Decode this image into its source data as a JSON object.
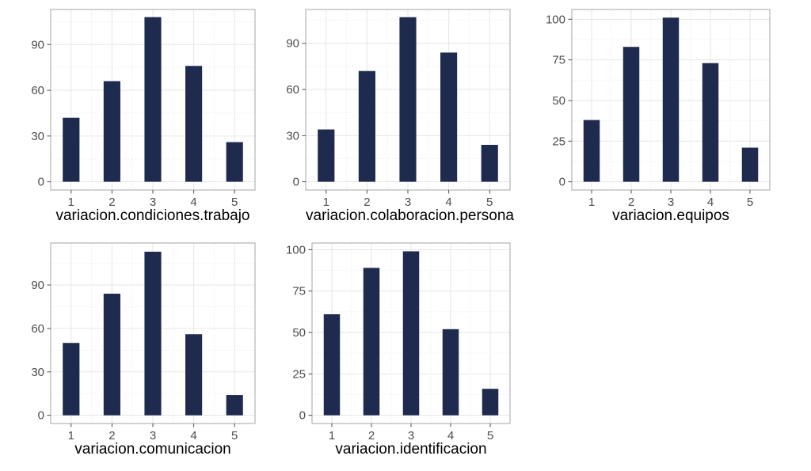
{
  "figure": {
    "description": "Grid of five histograms showing distributions of 1-5 survey responses",
    "background": "#ffffff"
  },
  "styles": {
    "bar_color": "#1f2b4e",
    "panel_bg": "#ffffff",
    "panel_border": "#b3b3b3",
    "grid_major": "#e6e6e6",
    "grid_minor": "#ededed",
    "tick_mark": "#4d4d4d",
    "tick_label_color": "#4d4d4d",
    "axis_title_color": "#000000"
  },
  "chart_data": [
    {
      "type": "bar",
      "title": "",
      "xlabel": "variacion.condiciones.trabajo",
      "ylabel": "",
      "categories": [
        1,
        2,
        3,
        4,
        5
      ],
      "values": [
        42,
        66,
        108,
        76,
        26
      ],
      "y_ticks": [
        0,
        30,
        60,
        90
      ],
      "ylim": [
        0,
        113
      ],
      "xlim": [
        0.5,
        5.5
      ],
      "bar_width": 0.41,
      "grid": true,
      "legend": "none"
    },
    {
      "type": "bar",
      "title": "",
      "xlabel": "variacion.colaboracion.persona",
      "ylabel": "",
      "categories": [
        1,
        2,
        3,
        4,
        5
      ],
      "values": [
        34,
        72,
        107,
        84,
        24
      ],
      "y_ticks": [
        0,
        30,
        60,
        90
      ],
      "ylim": [
        0,
        112
      ],
      "xlim": [
        0.5,
        5.5
      ],
      "bar_width": 0.41,
      "grid": true,
      "legend": "none"
    },
    {
      "type": "bar",
      "title": "",
      "xlabel": "variacion.equipos",
      "ylabel": "",
      "categories": [
        1,
        2,
        3,
        4,
        5
      ],
      "values": [
        38,
        83,
        101,
        73,
        21
      ],
      "y_ticks": [
        0,
        25,
        50,
        75,
        100
      ],
      "ylim": [
        0,
        106
      ],
      "xlim": [
        0.5,
        5.5
      ],
      "bar_width": 0.41,
      "grid": true,
      "legend": "none"
    },
    {
      "type": "bar",
      "title": "",
      "xlabel": "variacion.comunicacion",
      "ylabel": "",
      "categories": [
        1,
        2,
        3,
        4,
        5
      ],
      "values": [
        50,
        84,
        113,
        56,
        14
      ],
      "y_ticks": [
        0,
        30,
        60,
        90
      ],
      "ylim": [
        0,
        119
      ],
      "xlim": [
        0.5,
        5.5
      ],
      "bar_width": 0.41,
      "grid": true,
      "legend": "none"
    },
    {
      "type": "bar",
      "title": "",
      "xlabel": "variacion.identificacion",
      "ylabel": "",
      "categories": [
        1,
        2,
        3,
        4,
        5
      ],
      "values": [
        61,
        89,
        99,
        52,
        16
      ],
      "y_ticks": [
        0,
        25,
        50,
        75,
        100
      ],
      "ylim": [
        0,
        104
      ],
      "xlim": [
        0.5,
        5.5
      ],
      "bar_width": 0.41,
      "grid": true,
      "legend": "none"
    }
  ]
}
